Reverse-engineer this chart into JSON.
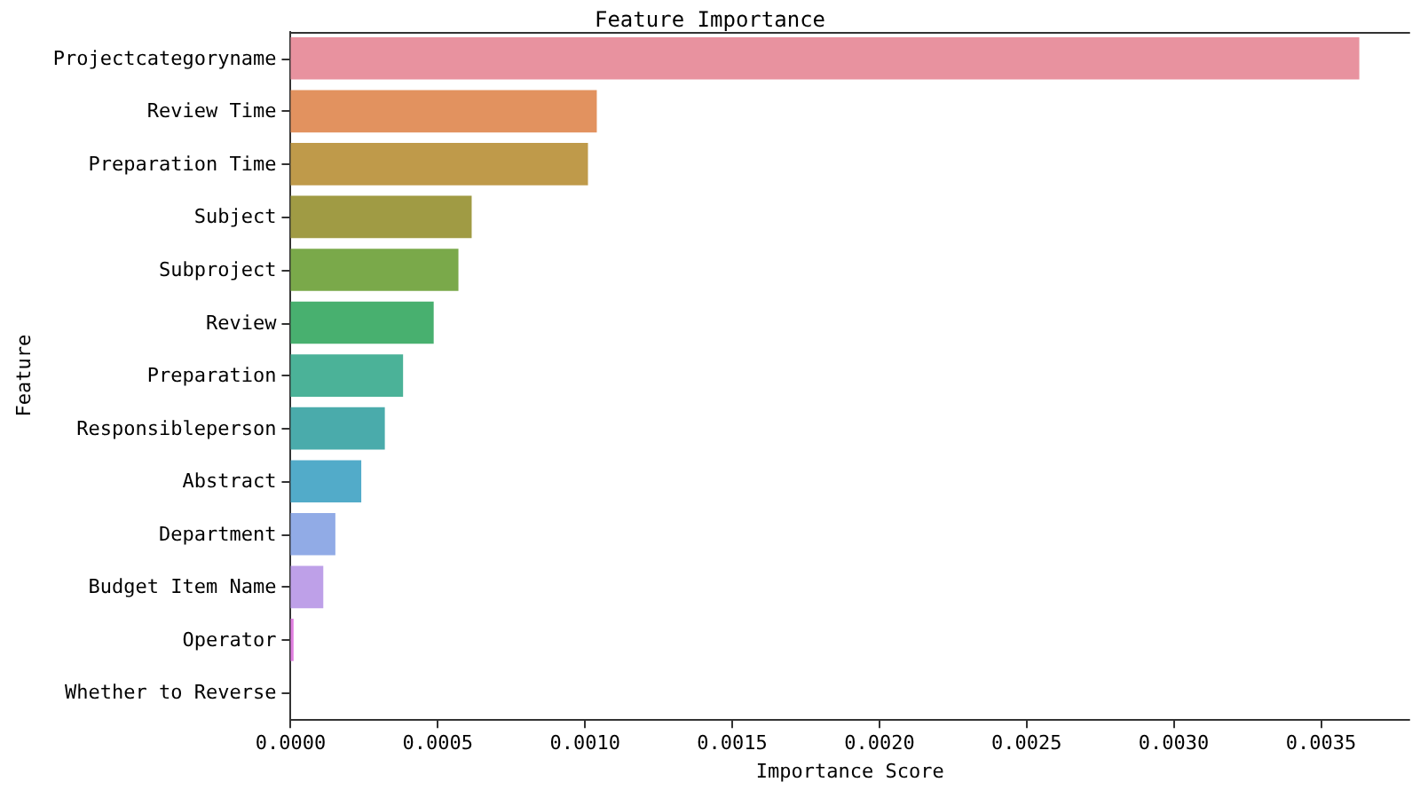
{
  "chart_data": {
    "type": "bar",
    "orientation": "horizontal",
    "title": "Feature Importance",
    "xlabel": "Importance Score",
    "ylabel": "Feature",
    "categories": [
      "Projectcategoryname",
      "Review Time",
      "Preparation Time",
      "Subject",
      "Subproject",
      "Review",
      "Preparation",
      "Responsibleperson",
      "Abstract",
      "Department",
      "Budget Item Name",
      "Operator",
      "Whether to Reverse"
    ],
    "values": [
      0.00363,
      0.00104,
      0.00101,
      0.000615,
      0.00057,
      0.000486,
      0.000382,
      0.00032,
      0.00024,
      0.000152,
      0.000111,
      1e-05,
      0
    ],
    "colors": [
      "#e8929f",
      "#e2925f",
      "#bf9a4a",
      "#a09b44",
      "#7aa94a",
      "#48b06f",
      "#4bb298",
      "#4aabab",
      "#52abc9",
      "#91abe6",
      "#bea0e8",
      "#e07ee0",
      "#ea8bc7"
    ],
    "xlim": [
      0,
      0.0038
    ],
    "xticks": [
      {
        "value": 0,
        "label": "0.0000"
      },
      {
        "value": 0.0005,
        "label": "0.0005"
      },
      {
        "value": 0.001,
        "label": "0.0010"
      },
      {
        "value": 0.0015,
        "label": "0.0015"
      },
      {
        "value": 0.002,
        "label": "0.0020"
      },
      {
        "value": 0.0025,
        "label": "0.0025"
      },
      {
        "value": 0.003,
        "label": "0.0030"
      },
      {
        "value": 0.0035,
        "label": "0.0035"
      }
    ],
    "grid": false
  }
}
